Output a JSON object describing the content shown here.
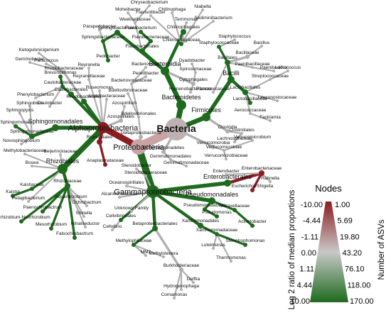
{
  "legend": {
    "title": "Nodes",
    "color_label": "Log 2 ratio of median proportions",
    "color_ticks": [
      "-10.00",
      "-4.44",
      "-1.11",
      "0.00",
      "1.11",
      "4.44",
      "10.00"
    ],
    "size_label": "Number of ASVs",
    "size_ticks": [
      "1.00",
      "5.69",
      "19.80",
      "43.20",
      "76.10",
      "118.00",
      "170.00"
    ]
  },
  "nodes": [
    {
      "label": "Bacteria",
      "color": "#bdb1b2"
    },
    {
      "label": "Proteobacteria",
      "color": "#c9a2a4"
    },
    {
      "label": "Alphaproteobacteria",
      "color": "#8c1c22"
    },
    {
      "label": "Gammaproteobacteria",
      "color": "#1e6b1e"
    },
    {
      "label": "Bacteroidetes",
      "color": "#1e6b1e"
    },
    {
      "label": "Bacteroidia",
      "color": "#1e6b1e"
    },
    {
      "label": "Firmicutes",
      "color": "#1e6b1e"
    },
    {
      "label": "Bacilli",
      "color": "#1e6b1e"
    },
    {
      "label": "Clostridia",
      "color": "#b0b0b0"
    },
    {
      "label": "Verrucomicrobia",
      "color": "#b0b0b0"
    },
    {
      "label": "Gemmatimonadetes",
      "color": "#b0b0b0"
    },
    {
      "label": "Deltaproteobacteria",
      "color": "#b0b0b0"
    },
    {
      "label": "Rhizobiales",
      "color": "#1e6b1e"
    },
    {
      "label": "Rhodobacterales",
      "color": "#1e6b1e"
    },
    {
      "label": "Sphingomonadales",
      "color": "#1e6b1e"
    },
    {
      "label": "Caulobacterales",
      "color": "#1e6b1e"
    },
    {
      "label": "Rickettsiales",
      "color": "#8c1c22"
    },
    {
      "label": "Anaplasmataceae",
      "color": "#8c1c22"
    },
    {
      "label": "Azospirillales",
      "color": "#b0b0b0"
    },
    {
      "label": "Roseomonas",
      "color": "#b0b0b0"
    },
    {
      "label": "Acetobacteraceae",
      "color": "#b0b0b0"
    },
    {
      "label": "Reyranellaceae",
      "color": "#b0b0b0"
    },
    {
      "label": "Reyranella",
      "color": "#b0b0b0"
    },
    {
      "label": "Rhodobacteraceae",
      "color": "#b0b0b0"
    },
    {
      "label": "Paracoccus",
      "color": "#b0b0b0"
    },
    {
      "label": "Gemmobacter",
      "color": "#b0b0b0"
    },
    {
      "label": "Ketogulonicigenium",
      "color": "#b0b0b0"
    },
    {
      "label": "Caulobacteraceae",
      "color": "#1e6b1e"
    },
    {
      "label": "Brevundimonas",
      "color": "#1e6b1e"
    },
    {
      "label": "Caulobacter",
      "color": "#b0b0b0"
    },
    {
      "label": "Phenylobacterium",
      "color": "#b0b0b0"
    },
    {
      "label": "Sphingomonadaceae",
      "color": "#1e6b1e"
    },
    {
      "label": "Sphingomonas",
      "color": "#1e6b1e"
    },
    {
      "label": "Sphingopyxis",
      "color": "#b0b0b0"
    },
    {
      "label": "Sphingobium",
      "color": "#b0b0b0"
    },
    {
      "label": "Novosphingobium",
      "color": "#b0b0b0"
    },
    {
      "label": "Methylobacteriaceae",
      "color": "#b0b0b0"
    },
    {
      "label": "Beijerinckiaceae",
      "color": "#b0b0b0"
    },
    {
      "label": "Bosea",
      "color": "#b0b0b0"
    },
    {
      "label": "Kaistiaceae",
      "color": "#1e6b1e"
    },
    {
      "label": "Kaistia",
      "color": "#1e6b1e"
    },
    {
      "label": "Rhizobiaceae",
      "color": "#1e6b1e"
    },
    {
      "label": "Pelagibacterium",
      "color": "#b0b0b0"
    },
    {
      "label": "Paenochrobactrum",
      "color": "#1e6b1e"
    },
    {
      "label": "Allorhizobium-Neorhizobium",
      "color": "#1e6b1e"
    },
    {
      "label": "Ochrobactrum",
      "color": "#b0b0b0"
    },
    {
      "label": "Aquamicrobium",
      "color": "#b0b0b0"
    },
    {
      "label": "Shinella",
      "color": "#b0b0b0"
    },
    {
      "label": "Nitratireductor",
      "color": "#b0b0b0"
    },
    {
      "label": "Falsochrobactrum",
      "color": "#1e6b1e"
    },
    {
      "label": "Mesorhizobium",
      "color": "#1e6b1e"
    },
    {
      "label": "Azospirillum",
      "color": "#b0b0b0"
    },
    {
      "label": "Bdellovibrionales",
      "color": "#b0b0b0"
    },
    {
      "label": "Bdellovibrionaceae",
      "color": "#b0b0b0"
    },
    {
      "label": "Bacteriovoracaceae",
      "color": "#b0b0b0"
    },
    {
      "label": "Peredibacter",
      "color": "#b0b0b0"
    },
    {
      "label": "Bacteriovorax",
      "color": "#b0b0b0"
    },
    {
      "label": "Flavobacteriales",
      "color": "#1e6b1e"
    },
    {
      "label": "Flavobacteriaceae",
      "color": "#1e6b1e"
    },
    {
      "label": "Flavobacterium",
      "color": "#1e6b1e"
    },
    {
      "label": "Chryseobacterium",
      "color": "#b0b0b0"
    },
    {
      "label": "Weeksellaceae",
      "color": "#b0b0b0"
    },
    {
      "label": "Moheibacter",
      "color": "#b0b0b0"
    },
    {
      "label": "Flavisolibacter",
      "color": "#b0b0b0"
    },
    {
      "label": "Sphingobacteriales",
      "color": "#1e6b1e"
    },
    {
      "label": "Sphingobacteriaceae",
      "color": "#1e6b1e"
    },
    {
      "label": "Pedobacter",
      "color": "#1e6b1e"
    },
    {
      "label": "Parapedobacter",
      "color": "#b0b0b0"
    },
    {
      "label": "Chitinophagales",
      "color": "#1e6b1e"
    },
    {
      "label": "Chitinophagaceae",
      "color": "#1e6b1e"
    },
    {
      "label": "Terrimonas",
      "color": "#b0b0b0"
    },
    {
      "label": "Sediminibacterium",
      "color": "#b0b0b0"
    },
    {
      "label": "Niabella",
      "color": "#b0b0b0"
    },
    {
      "label": "Chitinophaga",
      "color": "#b0b0b0"
    },
    {
      "label": "Cytophagales",
      "color": "#b0b0b0"
    },
    {
      "label": "Spirosomaceae",
      "color": "#b0b0b0"
    },
    {
      "label": "Dyadobacter",
      "color": "#b0b0b0"
    },
    {
      "label": "Hymenobacteraceae",
      "color": "#b0b0b0"
    },
    {
      "label": "Bacillales",
      "color": "#1e6b1e"
    },
    {
      "label": "Staphylococcaceae",
      "color": "#1e6b1e"
    },
    {
      "label": "Staphylococcus",
      "color": "#b0b0b0"
    },
    {
      "label": "Bacillaceae",
      "color": "#b0b0b0"
    },
    {
      "label": "Bacillus",
      "color": "#b0b0b0"
    },
    {
      "label": "Paenibacillaceae",
      "color": "#b0b0b0"
    },
    {
      "label": "Paenibacillus",
      "color": "#b0b0b0"
    },
    {
      "label": "Planococcaceae",
      "color": "#b0b0b0"
    },
    {
      "label": "Lactobacillales",
      "color": "#1e6b1e"
    },
    {
      "label": "Lactobacillaceae",
      "color": "#1e6b1e"
    },
    {
      "label": "Streptococcaceae",
      "color": "#b0b0b0"
    },
    {
      "label": "Lactococcus",
      "color": "#b0b0b0"
    },
    {
      "label": "Leuconostocaceae",
      "color": "#b0b0b0"
    },
    {
      "label": "Aerococcaceae",
      "color": "#b0b0b0"
    },
    {
      "label": "Facklamia",
      "color": "#b0b0b0"
    },
    {
      "label": "Clostridiales",
      "color": "#b0b0b0"
    },
    {
      "label": "Lachnospiraceae",
      "color": "#b0b0b0"
    },
    {
      "label": "Verrucomicrobiae",
      "color": "#b0b0b0"
    },
    {
      "label": "Verrucomicrobiaceae",
      "color": "#b0b0b0"
    },
    {
      "label": "Verrucomicrobium",
      "color": "#b0b0b0"
    },
    {
      "label": "Gemmatimonadales",
      "color": "#b0b0b0"
    },
    {
      "label": "Gemmatimonadaceae",
      "color": "#b0b0b0"
    },
    {
      "label": "Enterobacterales",
      "color": "#1e6b1e"
    },
    {
      "label": "Enterobacteriaceae",
      "color": "#8c1c22"
    },
    {
      "label": "Escherichia/Shigella",
      "color": "#8c1c22"
    },
    {
      "label": "Enterobacter",
      "color": "#b0b0b0"
    },
    {
      "label": "Rahnella",
      "color": "#b0b0b0"
    },
    {
      "label": "Pseudomonadales",
      "color": "#1e6b1e"
    },
    {
      "label": "Pseudomonadaceae",
      "color": "#1e6b1e"
    },
    {
      "label": "Pseudomonas",
      "color": "#1e6b1e"
    },
    {
      "label": "Moraxellaceae",
      "color": "#1e6b1e"
    },
    {
      "label": "Acinetobacter",
      "color": "#1e6b1e"
    },
    {
      "label": "Xanthomonadales",
      "color": "#1e6b1e"
    },
    {
      "label": "Xanthomonadaceae",
      "color": "#1e6b1e"
    },
    {
      "label": "Stenotrophomonas",
      "color": "#1e6b1e"
    },
    {
      "label": "Luteimonas",
      "color": "#b0b0b0"
    },
    {
      "label": "Thermomonas",
      "color": "#b0b0b0"
    },
    {
      "label": "Betaproteobacteriales",
      "color": "#1e6b1e"
    },
    {
      "label": "Burkholderiaceae",
      "color": "#b0b0b0"
    },
    {
      "label": "Comamonas",
      "color": "#b0b0b0"
    },
    {
      "label": "Hydrogenophaga",
      "color": "#b0b0b0"
    },
    {
      "label": "Delftia",
      "color": "#b0b0b0"
    },
    {
      "label": "Methylophilaceae",
      "color": "#1e6b1e"
    },
    {
      "label": "Methylotenera",
      "color": "#b0b0b0"
    },
    {
      "label": "MM2",
      "color": "#b0b0b0"
    },
    {
      "label": "Cellvibrionales",
      "color": "#1e6b1e"
    },
    {
      "label": "Cellvibrio",
      "color": "#b0b0b0"
    },
    {
      "label": "Unknown Family",
      "color": "#b0b0b0"
    },
    {
      "label": "Alcanivoracaceae",
      "color": "#b0b0b0"
    },
    {
      "label": "Steroidobacteraceae",
      "color": "#b0b0b0"
    },
    {
      "label": "Steroidobacter",
      "color": "#b0b0b0"
    },
    {
      "label": "Oceanospirillales",
      "color": "#b0b0b0"
    }
  ]
}
